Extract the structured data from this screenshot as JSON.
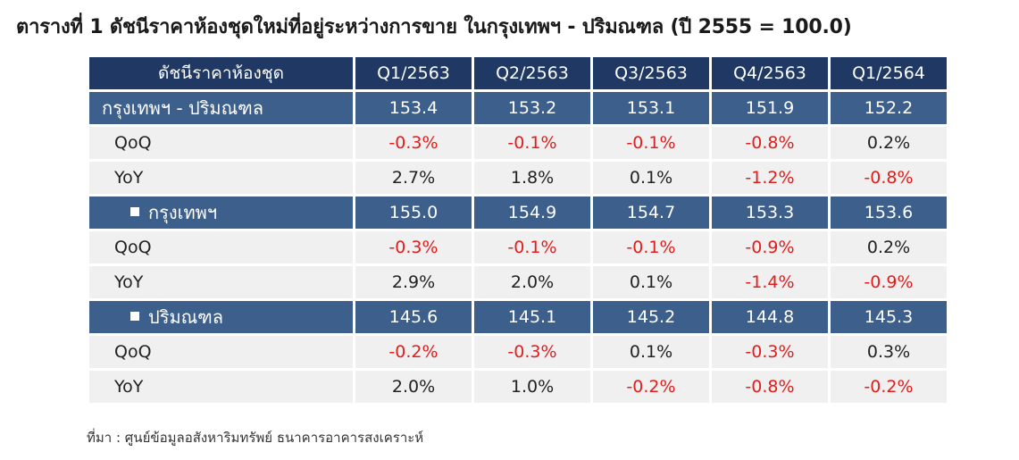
{
  "title": "ตารางที่ 1 ดัชนีราคาห้องชุดใหม่ที่อยู่ระหว่างการขาย ในกรุงเทพฯ - ปริมณฑล (ปี 2555 = 100.0)",
  "table": {
    "header": [
      "ดัชนีราคาห้องชุด",
      "Q1/2563",
      "Q2/2563",
      "Q3/2563",
      "Q4/2563",
      "Q1/2564"
    ],
    "groups": [
      {
        "label": "กรุงเทพฯ - ปริมณฑล",
        "index": [
          "153.4",
          "153.2",
          "153.1",
          "151.9",
          "152.2"
        ],
        "qoq_label": "QoQ",
        "qoq": [
          "-0.3%",
          "-0.1%",
          "-0.1%",
          "-0.8%",
          "0.2%"
        ],
        "yoy_label": "YoY",
        "yoy": [
          "2.7%",
          "1.8%",
          "0.1%",
          "-1.2%",
          "-0.8%"
        ]
      },
      {
        "label": "กรุงเทพฯ",
        "index": [
          "155.0",
          "154.9",
          "154.7",
          "153.3",
          "153.6"
        ],
        "qoq_label": "QoQ",
        "qoq": [
          "-0.3%",
          "-0.1%",
          "-0.1%",
          "-0.9%",
          "0.2%"
        ],
        "yoy_label": "YoY",
        "yoy": [
          "2.9%",
          "2.0%",
          "0.1%",
          "-1.4%",
          "-0.9%"
        ]
      },
      {
        "label": "ปริมณฑล",
        "index": [
          "145.6",
          "145.1",
          "145.2",
          "144.8",
          "145.3"
        ],
        "qoq_label": "QoQ",
        "qoq": [
          "-0.2%",
          "-0.3%",
          "0.1%",
          "-0.3%",
          "0.3%"
        ],
        "yoy_label": "YoY",
        "yoy": [
          "2.0%",
          "1.0%",
          "-0.2%",
          "-0.8%",
          "-0.2%"
        ]
      }
    ]
  },
  "source": "ที่มา : ศูนย์ข้อมูลอสังหาริมทรัพย์ ธนาคารอาคารสงเคราะห์",
  "colors": {
    "header_bg": "#1f3864",
    "group_bg": "#3d5f8c",
    "row_bg": "#f0f0f0",
    "negative": "#e31c1c"
  }
}
